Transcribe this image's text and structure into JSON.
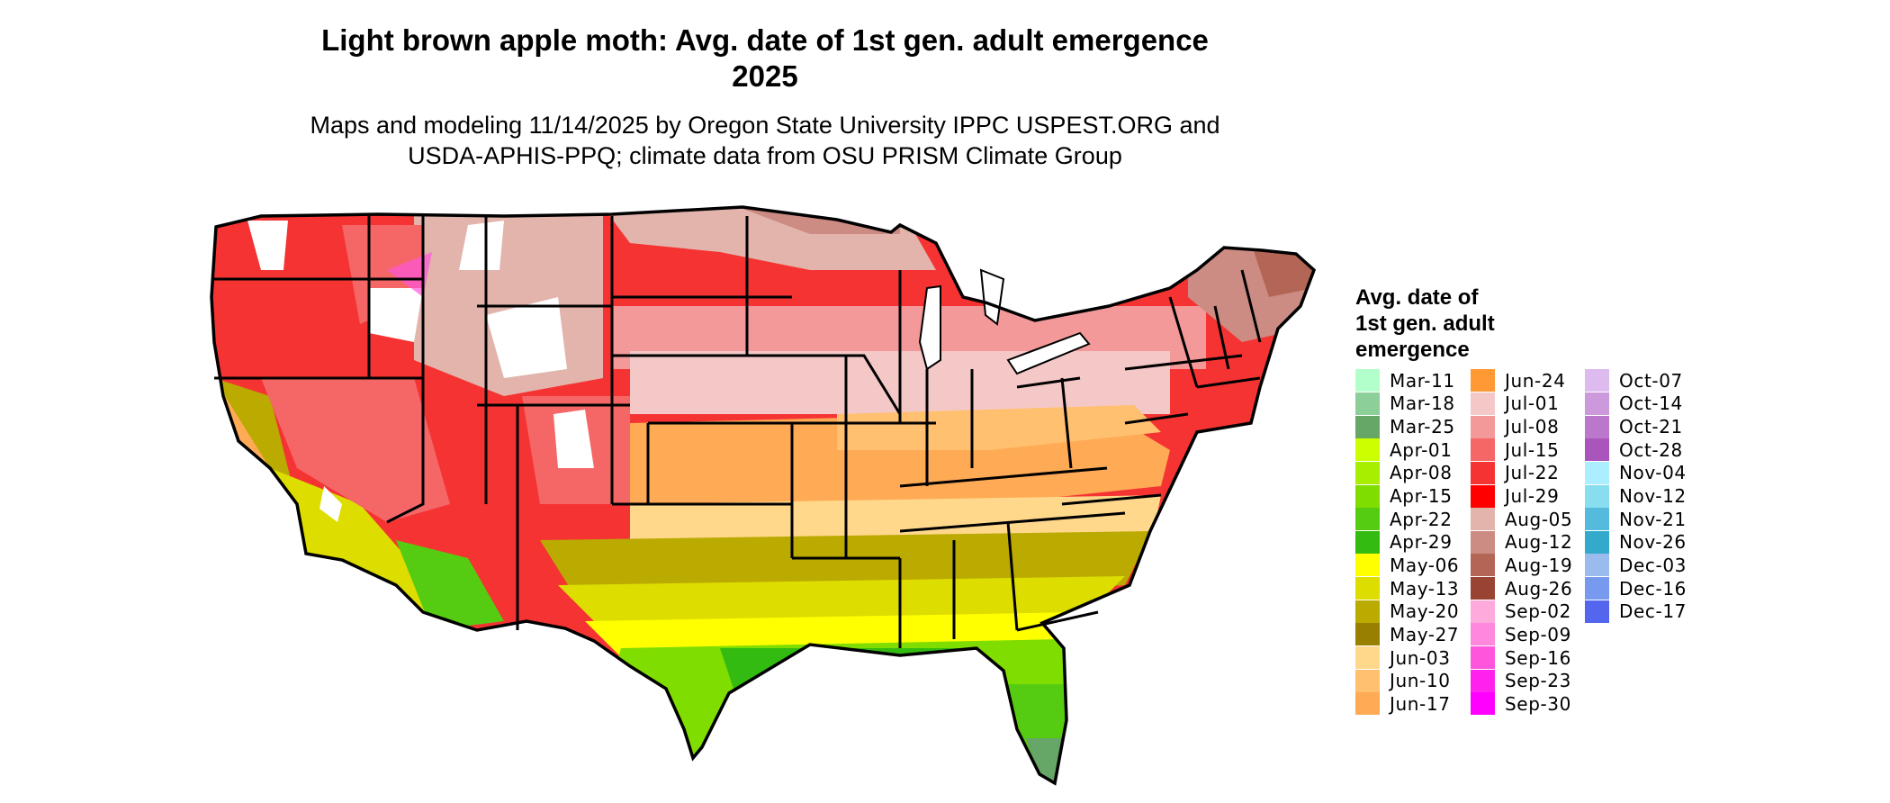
{
  "title_line1": "Light brown apple moth: Avg. date of 1st gen. adult emergence",
  "title_line2": "2025",
  "subtitle_line1": "Maps and modeling 11/14/2025 by Oregon State University IPPC USPEST.ORG and",
  "subtitle_line2": "USDA-APHIS-PPQ; climate data from OSU PRISM Climate Group",
  "legend": {
    "title_line1": "Avg. date of",
    "title_line2": "1st gen. adult",
    "title_line3": "emergence",
    "columns": [
      [
        {
          "label": "Mar-11",
          "color": "#b3ffcc"
        },
        {
          "label": "Mar-18",
          "color": "#8ccf99"
        },
        {
          "label": "Mar-25",
          "color": "#66a666"
        },
        {
          "label": "Apr-01",
          "color": "#ccff00"
        },
        {
          "label": "Apr-08",
          "color": "#a8ee00"
        },
        {
          "label": "Apr-15",
          "color": "#80dd00"
        },
        {
          "label": "Apr-22",
          "color": "#55cc11"
        },
        {
          "label": "Apr-29",
          "color": "#33bb11"
        },
        {
          "label": "May-06",
          "color": "#ffff00"
        },
        {
          "label": "May-13",
          "color": "#dddd00"
        },
        {
          "label": "May-20",
          "color": "#bbaa00"
        },
        {
          "label": "May-27",
          "color": "#997f00"
        },
        {
          "label": "Jun-03",
          "color": "#ffd88c"
        },
        {
          "label": "Jun-10",
          "color": "#ffc070"
        },
        {
          "label": "Jun-17",
          "color": "#ffaa55"
        }
      ],
      [
        {
          "label": "Jun-24",
          "color": "#ff9933"
        },
        {
          "label": "Jul-01",
          "color": "#f5c8c8"
        },
        {
          "label": "Jul-08",
          "color": "#f39999"
        },
        {
          "label": "Jul-15",
          "color": "#f56666"
        },
        {
          "label": "Jul-22",
          "color": "#f53333"
        },
        {
          "label": "Jul-29",
          "color": "#ff0000"
        },
        {
          "label": "Aug-05",
          "color": "#e2b4ac"
        },
        {
          "label": "Aug-12",
          "color": "#cc8c84"
        },
        {
          "label": "Aug-19",
          "color": "#b36655"
        },
        {
          "label": "Aug-26",
          "color": "#994433"
        },
        {
          "label": "Sep-02",
          "color": "#ffaadd"
        },
        {
          "label": "Sep-09",
          "color": "#ff88dd"
        },
        {
          "label": "Sep-16",
          "color": "#ff55dd"
        },
        {
          "label": "Sep-23",
          "color": "#ff22ee"
        },
        {
          "label": "Sep-30",
          "color": "#ff00ff"
        }
      ],
      [
        {
          "label": "Oct-07",
          "color": "#ddbbee"
        },
        {
          "label": "Oct-14",
          "color": "#cc99dd"
        },
        {
          "label": "Oct-21",
          "color": "#bb77cc"
        },
        {
          "label": "Oct-28",
          "color": "#aa55bb"
        },
        {
          "label": "Nov-04",
          "color": "#aaeeff"
        },
        {
          "label": "Nov-12",
          "color": "#88ddee"
        },
        {
          "label": "Nov-21",
          "color": "#55bbdd"
        },
        {
          "label": "Nov-26",
          "color": "#33aacc"
        },
        {
          "label": "Dec-03",
          "color": "#99bbee"
        },
        {
          "label": "Dec-16",
          "color": "#7799ee"
        },
        {
          "label": "Dec-17",
          "color": "#5566ee"
        }
      ]
    ]
  },
  "map_colors": {
    "background": "#ffffff",
    "boundary": "#000000",
    "snow": "#ffffff"
  }
}
